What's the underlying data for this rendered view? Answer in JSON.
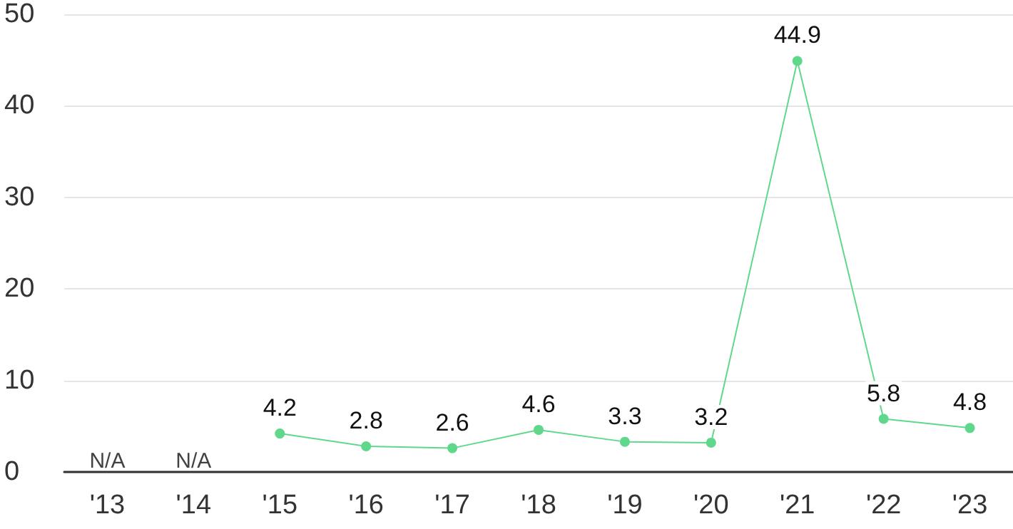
{
  "chart_data": {
    "type": "line",
    "categories": [
      "'13",
      "'14",
      "'15",
      "'16",
      "'17",
      "'18",
      "'19",
      "'20",
      "'21",
      "'22",
      "'23"
    ],
    "values": [
      null,
      null,
      4.2,
      2.8,
      2.6,
      4.6,
      3.3,
      3.2,
      44.9,
      5.8,
      4.8
    ],
    "value_labels": [
      "N/A",
      "N/A",
      "4.2",
      "2.8",
      "2.6",
      "4.6",
      "3.3",
      "3.2",
      "44.9",
      "5.8",
      "4.8"
    ],
    "color": "#5fd88c",
    "ylim": [
      0,
      50
    ],
    "yticks": [
      0,
      10,
      20,
      30,
      40,
      50
    ],
    "grid": "y",
    "marker": "circle",
    "line_style": "solid"
  }
}
